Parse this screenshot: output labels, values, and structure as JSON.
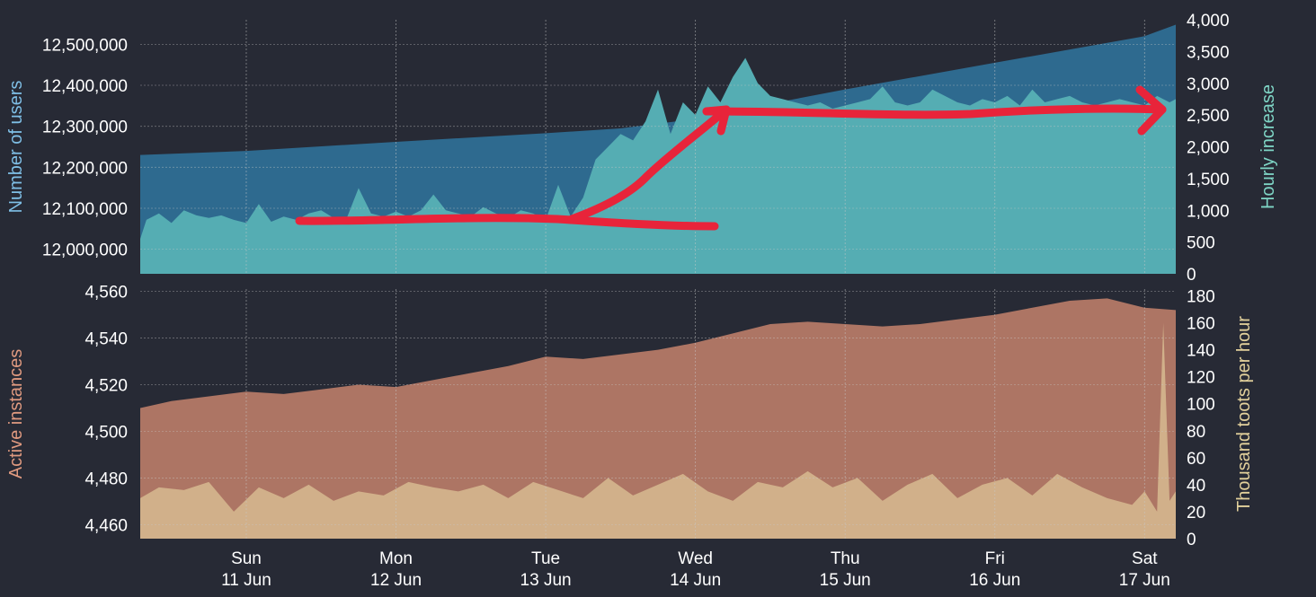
{
  "colors": {
    "background": "#272a35",
    "users_area": "#2e6a8f",
    "hourly_area": "#55adb3",
    "instances_area": "#ad7564",
    "toots_area": "#d1b08a",
    "users_axis_label": "#7fbfe6",
    "hourly_axis_label": "#7fd6c6",
    "instances_axis_label": "#e09a80",
    "toots_axis_label": "#e3d19c",
    "tick_text": "#ffffff",
    "grid": "#c8c8c8",
    "annotation": "#e8243a"
  },
  "x_axis": {
    "range": [
      "2023-06-10T19:00",
      "2023-06-17T17:00"
    ],
    "ticks": [
      {
        "at": "2023-06-11T12:00",
        "day": "Sun",
        "date": "11 Jun"
      },
      {
        "at": "2023-06-12T12:00",
        "day": "Mon",
        "date": "12 Jun"
      },
      {
        "at": "2023-06-13T12:00",
        "day": "Tue",
        "date": "13 Jun"
      },
      {
        "at": "2023-06-14T12:00",
        "day": "Wed",
        "date": "14 Jun"
      },
      {
        "at": "2023-06-15T12:00",
        "day": "Thu",
        "date": "15 Jun"
      },
      {
        "at": "2023-06-16T12:00",
        "day": "Fri",
        "date": "16 Jun"
      },
      {
        "at": "2023-06-17T12:00",
        "day": "Sat",
        "date": "17 Jun"
      }
    ]
  },
  "chart_data": [
    {
      "type": "area",
      "panel": "top",
      "grid": true,
      "left_axis": {
        "label": "Number of users",
        "range": [
          11940000,
          12560000
        ],
        "ticks": [
          "12,000,000",
          "12,100,000",
          "12,200,000",
          "12,300,000",
          "12,400,000",
          "12,500,000"
        ],
        "tick_values": [
          12000000,
          12100000,
          12200000,
          12300000,
          12400000,
          12500000
        ]
      },
      "right_axis": {
        "label": "Hourly increase",
        "range": [
          0,
          4000
        ],
        "ticks": [
          "0",
          "500",
          "1,000",
          "1,500",
          "2,000",
          "2,500",
          "3,000",
          "3,500",
          "4,000"
        ],
        "tick_values": [
          0,
          500,
          1000,
          1500,
          2000,
          2500,
          3000,
          3500,
          4000
        ]
      },
      "series": [
        {
          "name": "Number of users",
          "axis": "left",
          "x": [
            "2023-06-10T19:00",
            "2023-06-11T12:00",
            "2023-06-12T12:00",
            "2023-06-13T12:00",
            "2023-06-14T00:00",
            "2023-06-14T12:00",
            "2023-06-15T00:00",
            "2023-06-15T12:00",
            "2023-06-16T12:00",
            "2023-06-17T12:00",
            "2023-06-17T17:00"
          ],
          "values": [
            12230000,
            12240000,
            12262000,
            12283000,
            12295000,
            12318000,
            12355000,
            12390000,
            12455000,
            12520000,
            12548000
          ]
        },
        {
          "name": "Hourly increase",
          "axis": "right",
          "x": [
            "2023-06-10T19:00",
            "2023-06-10T20:00",
            "2023-06-10T22:00",
            "2023-06-11T00:00",
            "2023-06-11T02:00",
            "2023-06-11T04:00",
            "2023-06-11T06:00",
            "2023-06-11T08:00",
            "2023-06-11T10:00",
            "2023-06-11T12:00",
            "2023-06-11T14:00",
            "2023-06-11T16:00",
            "2023-06-11T18:00",
            "2023-06-11T20:00",
            "2023-06-11T22:00",
            "2023-06-12T00:00",
            "2023-06-12T02:00",
            "2023-06-12T04:00",
            "2023-06-12T06:00",
            "2023-06-12T08:00",
            "2023-06-12T10:00",
            "2023-06-12T12:00",
            "2023-06-12T14:00",
            "2023-06-12T16:00",
            "2023-06-12T18:00",
            "2023-06-12T20:00",
            "2023-06-12T22:00",
            "2023-06-13T00:00",
            "2023-06-13T02:00",
            "2023-06-13T04:00",
            "2023-06-13T06:00",
            "2023-06-13T08:00",
            "2023-06-13T10:00",
            "2023-06-13T12:00",
            "2023-06-13T14:00",
            "2023-06-13T16:00",
            "2023-06-13T18:00",
            "2023-06-13T20:00",
            "2023-06-13T22:00",
            "2023-06-14T00:00",
            "2023-06-14T02:00",
            "2023-06-14T04:00",
            "2023-06-14T06:00",
            "2023-06-14T08:00",
            "2023-06-14T10:00",
            "2023-06-14T12:00",
            "2023-06-14T14:00",
            "2023-06-14T16:00",
            "2023-06-14T18:00",
            "2023-06-14T20:00",
            "2023-06-14T22:00",
            "2023-06-15T00:00",
            "2023-06-15T02:00",
            "2023-06-15T04:00",
            "2023-06-15T06:00",
            "2023-06-15T08:00",
            "2023-06-15T10:00",
            "2023-06-15T12:00",
            "2023-06-15T14:00",
            "2023-06-15T16:00",
            "2023-06-15T18:00",
            "2023-06-15T20:00",
            "2023-06-15T22:00",
            "2023-06-16T00:00",
            "2023-06-16T02:00",
            "2023-06-16T04:00",
            "2023-06-16T06:00",
            "2023-06-16T08:00",
            "2023-06-16T10:00",
            "2023-06-16T12:00",
            "2023-06-16T14:00",
            "2023-06-16T16:00",
            "2023-06-16T18:00",
            "2023-06-16T20:00",
            "2023-06-16T22:00",
            "2023-06-17T00:00",
            "2023-06-17T02:00",
            "2023-06-17T04:00",
            "2023-06-17T06:00",
            "2023-06-17T08:00",
            "2023-06-17T10:00",
            "2023-06-17T12:00",
            "2023-06-17T14:00",
            "2023-06-17T16:00",
            "2023-06-17T17:00"
          ],
          "values": [
            550,
            850,
            950,
            800,
            1000,
            920,
            880,
            920,
            850,
            800,
            1100,
            820,
            900,
            850,
            950,
            1000,
            880,
            850,
            1350,
            950,
            900,
            980,
            900,
            1000,
            1250,
            1000,
            950,
            900,
            1050,
            950,
            880,
            1000,
            950,
            850,
            1400,
            900,
            1200,
            1800,
            2000,
            2200,
            2100,
            2400,
            2900,
            2200,
            2700,
            2500,
            2950,
            2700,
            3100,
            3400,
            3000,
            2800,
            2750,
            2700,
            2650,
            2700,
            2600,
            2650,
            2700,
            2750,
            2950,
            2700,
            2650,
            2700,
            2900,
            2800,
            2700,
            2650,
            2750,
            2700,
            2800,
            2650,
            2900,
            2700,
            2750,
            2800,
            2700,
            2650,
            2700,
            2750,
            2700,
            2650,
            2800,
            2700,
            2750
          ]
        }
      ]
    },
    {
      "type": "area",
      "panel": "bottom",
      "grid": true,
      "left_axis": {
        "label": "Active instances",
        "range": [
          4454,
          4561
        ],
        "ticks": [
          "4,460",
          "4,480",
          "4,500",
          "4,520",
          "4,540",
          "4,560"
        ],
        "tick_values": [
          4460,
          4480,
          4500,
          4520,
          4540,
          4560
        ]
      },
      "right_axis": {
        "label": "Thousand toots per hour",
        "range": [
          0,
          185
        ],
        "ticks": [
          "0",
          "20",
          "40",
          "60",
          "80",
          "100",
          "120",
          "140",
          "160",
          "180"
        ],
        "tick_values": [
          0,
          20,
          40,
          60,
          80,
          100,
          120,
          140,
          160,
          180
        ]
      },
      "series": [
        {
          "name": "Active instances",
          "axis": "left",
          "x": [
            "2023-06-10T19:00",
            "2023-06-11T00:00",
            "2023-06-11T06:00",
            "2023-06-11T12:00",
            "2023-06-11T18:00",
            "2023-06-12T00:00",
            "2023-06-12T06:00",
            "2023-06-12T12:00",
            "2023-06-12T18:00",
            "2023-06-13T00:00",
            "2023-06-13T06:00",
            "2023-06-13T12:00",
            "2023-06-13T18:00",
            "2023-06-14T00:00",
            "2023-06-14T06:00",
            "2023-06-14T12:00",
            "2023-06-14T18:00",
            "2023-06-15T00:00",
            "2023-06-15T06:00",
            "2023-06-15T12:00",
            "2023-06-15T18:00",
            "2023-06-16T00:00",
            "2023-06-16T06:00",
            "2023-06-16T12:00",
            "2023-06-16T18:00",
            "2023-06-17T00:00",
            "2023-06-17T06:00",
            "2023-06-17T12:00",
            "2023-06-17T17:00"
          ],
          "values": [
            4510,
            4513,
            4515,
            4517,
            4516,
            4518,
            4520,
            4519,
            4522,
            4525,
            4528,
            4532,
            4531,
            4533,
            4535,
            4538,
            4542,
            4546,
            4547,
            4546,
            4545,
            4546,
            4548,
            4550,
            4553,
            4556,
            4557,
            4553,
            4552
          ]
        },
        {
          "name": "Thousand toots per hour",
          "axis": "right",
          "x": [
            "2023-06-10T19:00",
            "2023-06-10T22:00",
            "2023-06-11T02:00",
            "2023-06-11T06:00",
            "2023-06-11T10:00",
            "2023-06-11T14:00",
            "2023-06-11T18:00",
            "2023-06-11T22:00",
            "2023-06-12T02:00",
            "2023-06-12T06:00",
            "2023-06-12T10:00",
            "2023-06-12T14:00",
            "2023-06-12T18:00",
            "2023-06-12T22:00",
            "2023-06-13T02:00",
            "2023-06-13T06:00",
            "2023-06-13T10:00",
            "2023-06-13T14:00",
            "2023-06-13T18:00",
            "2023-06-13T22:00",
            "2023-06-14T02:00",
            "2023-06-14T06:00",
            "2023-06-14T10:00",
            "2023-06-14T14:00",
            "2023-06-14T18:00",
            "2023-06-14T22:00",
            "2023-06-15T02:00",
            "2023-06-15T06:00",
            "2023-06-15T10:00",
            "2023-06-15T14:00",
            "2023-06-15T18:00",
            "2023-06-15T22:00",
            "2023-06-16T02:00",
            "2023-06-16T06:00",
            "2023-06-16T10:00",
            "2023-06-16T14:00",
            "2023-06-16T18:00",
            "2023-06-16T22:00",
            "2023-06-17T02:00",
            "2023-06-17T06:00",
            "2023-06-17T10:00",
            "2023-06-17T12:00",
            "2023-06-17T14:00",
            "2023-06-17T15:00",
            "2023-06-17T16:00",
            "2023-06-17T17:00"
          ],
          "values": [
            30,
            38,
            36,
            42,
            20,
            38,
            30,
            40,
            28,
            35,
            32,
            42,
            38,
            35,
            40,
            30,
            42,
            36,
            30,
            45,
            32,
            40,
            48,
            35,
            28,
            42,
            38,
            50,
            38,
            45,
            28,
            40,
            48,
            30,
            40,
            45,
            32,
            48,
            38,
            30,
            25,
            35,
            20,
            160,
            28,
            35
          ]
        }
      ]
    }
  ]
}
